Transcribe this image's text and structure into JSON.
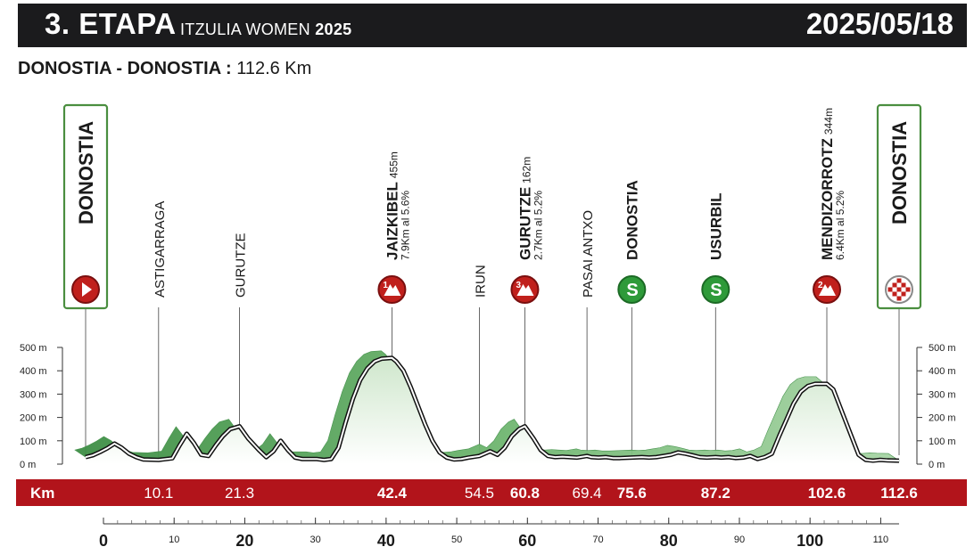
{
  "header": {
    "stage": "3. ETAPA",
    "race": "ITZULIA WOMEN",
    "year": "2025",
    "date": "2025/05/18"
  },
  "route": {
    "name": "DONOSTIA - DONOSTIA :",
    "distance": "112.6 Km"
  },
  "chart_data": {
    "type": "area",
    "title": "",
    "xlabel": "Km",
    "ylabel": "",
    "xlim": [
      0,
      112.6
    ],
    "ylim": [
      0,
      500
    ],
    "x_ticks": [
      0,
      10,
      20,
      30,
      40,
      50,
      60,
      70,
      80,
      90,
      100,
      110
    ],
    "x_ticks_bold": [
      0,
      20,
      40,
      60,
      80,
      100
    ],
    "y_ticks": [
      0,
      100,
      200,
      300,
      400,
      500
    ],
    "y_tick_labels": [
      "0 m",
      "100 m",
      "200 m",
      "300 m",
      "400 m",
      "500 m"
    ],
    "colors": {
      "profile_dark": "#3e8e45",
      "profile_mid": "#6db56e",
      "profile_light": "#a8d5a6",
      "band": "#b2141b",
      "mountain_marker": "#c0201c",
      "sprint_marker": "#2e9a39",
      "start_frame": "#4a8e3f"
    },
    "series": [
      {
        "x": [
          0,
          1,
          2,
          3,
          4,
          5,
          6,
          7,
          8,
          10.1,
          12,
          13,
          14,
          15,
          16,
          17,
          18,
          19,
          20,
          21.3,
          22.5,
          24,
          25,
          26,
          27,
          28,
          29,
          30,
          31,
          32,
          33,
          34,
          35,
          36,
          37,
          38,
          39,
          40,
          41,
          42.4,
          43,
          44,
          45,
          46,
          47,
          48,
          49,
          50,
          51,
          52,
          53,
          54.5,
          56,
          57,
          58,
          59,
          60,
          60.8,
          62,
          63,
          64,
          65,
          66,
          67,
          68,
          69.4,
          70,
          71,
          72,
          73,
          74,
          75.6,
          77,
          78,
          79,
          80,
          81,
          82,
          83,
          84,
          85,
          86,
          87.2,
          88,
          89,
          90,
          91,
          92,
          93,
          94,
          95,
          96,
          97,
          98,
          99,
          100,
          101,
          102.6,
          103.5,
          104,
          105,
          106,
          107,
          108,
          109,
          110,
          111,
          112.6
        ],
        "values": [
          30,
          38,
          52,
          68,
          88,
          70,
          45,
          30,
          20,
          18,
          25,
          80,
          130,
          90,
          40,
          35,
          80,
          120,
          150,
          162,
          110,
          60,
          30,
          55,
          100,
          60,
          28,
          22,
          22,
          22,
          18,
          22,
          70,
          180,
          280,
          360,
          410,
          440,
          452,
          455,
          440,
          400,
          330,
          250,
          170,
          100,
          50,
          28,
          20,
          22,
          28,
          35,
          55,
          40,
          70,
          120,
          150,
          162,
          110,
          60,
          35,
          30,
          32,
          30,
          28,
          35,
          30,
          28,
          30,
          26,
          26,
          28,
          30,
          28,
          30,
          35,
          40,
          50,
          45,
          38,
          30,
          28,
          30,
          28,
          30,
          26,
          28,
          35,
          22,
          30,
          45,
          120,
          190,
          260,
          310,
          335,
          344,
          344,
          320,
          280,
          200,
          120,
          40,
          18,
          15,
          18,
          16,
          15
        ]
      }
    ],
    "waypoints": [
      {
        "km": "0",
        "name": "DONOSTIA",
        "kind": "start",
        "bold": true
      },
      {
        "km": "10.1",
        "name": "ASTIGARRAGA",
        "kind": "place",
        "bold": false
      },
      {
        "km": "21.3",
        "name": "GURUTZE",
        "kind": "place",
        "bold": false
      },
      {
        "km": "42.4",
        "name": "JAIZKIBEL",
        "alt": "455m",
        "info": "7.9Km al 5.6%",
        "kind": "climb",
        "cat": "1",
        "bold": true
      },
      {
        "km": "54.5",
        "name": "IRUN",
        "kind": "place",
        "bold": false
      },
      {
        "km": "60.8",
        "name": "GURUTZE",
        "alt": "162m",
        "info": "2.7Km al 5.2%",
        "kind": "climb",
        "cat": "3",
        "bold": true
      },
      {
        "km": "69.4",
        "name": "PASAI ANTXO",
        "kind": "place",
        "bold": false
      },
      {
        "km": "75.6",
        "name": "DONOSTIA",
        "kind": "sprint",
        "icon": "S",
        "bold": true
      },
      {
        "km": "87.2",
        "name": "USURBIL",
        "kind": "sprint",
        "icon": "S",
        "bold": true
      },
      {
        "km": "102.6",
        "name": "MENDIZORROTZ",
        "alt": "344m",
        "info": "6.4Km al 5.2%",
        "kind": "climb",
        "cat": "2",
        "bold": true
      },
      {
        "km": "112.6",
        "name": "DONOSTIA",
        "kind": "finish",
        "bold": true
      }
    ]
  }
}
